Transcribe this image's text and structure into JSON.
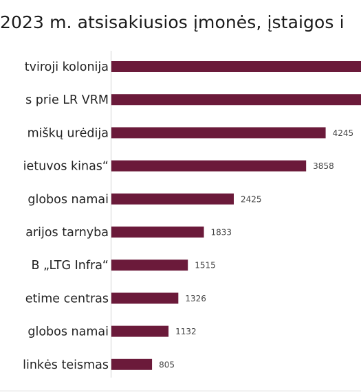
{
  "title": "2023 m. atsisakiusios įmonės, įstaigos i",
  "colors": {
    "bar": "#6b1a3a",
    "axis": "#d0d0d0",
    "border": "#d9d9d9"
  },
  "chart_data": {
    "type": "bar",
    "orientation": "horizontal",
    "title": "2023 m. atsisakiusios įmonės, įstaigos i",
    "categories": [
      "tviroji kolonija",
      "s prie LR VRM",
      "miškų urėdija",
      "ietuvos kinas“",
      "globos namai",
      "arijos tarnyba",
      "B „LTG Infra“",
      "etime centras",
      "globos namai",
      "linkės teismas"
    ],
    "values": [
      5500,
      5500,
      4245,
      3858,
      2425,
      1833,
      1515,
      1326,
      1132,
      805
    ],
    "value_labels": [
      "",
      "",
      "4245",
      "3858",
      "2425",
      "1833",
      "1515",
      "1326",
      "1132",
      "805"
    ],
    "xlim": [
      0,
      5300
    ],
    "xlabel": "",
    "ylabel": "",
    "grid": false,
    "legend": "none"
  }
}
